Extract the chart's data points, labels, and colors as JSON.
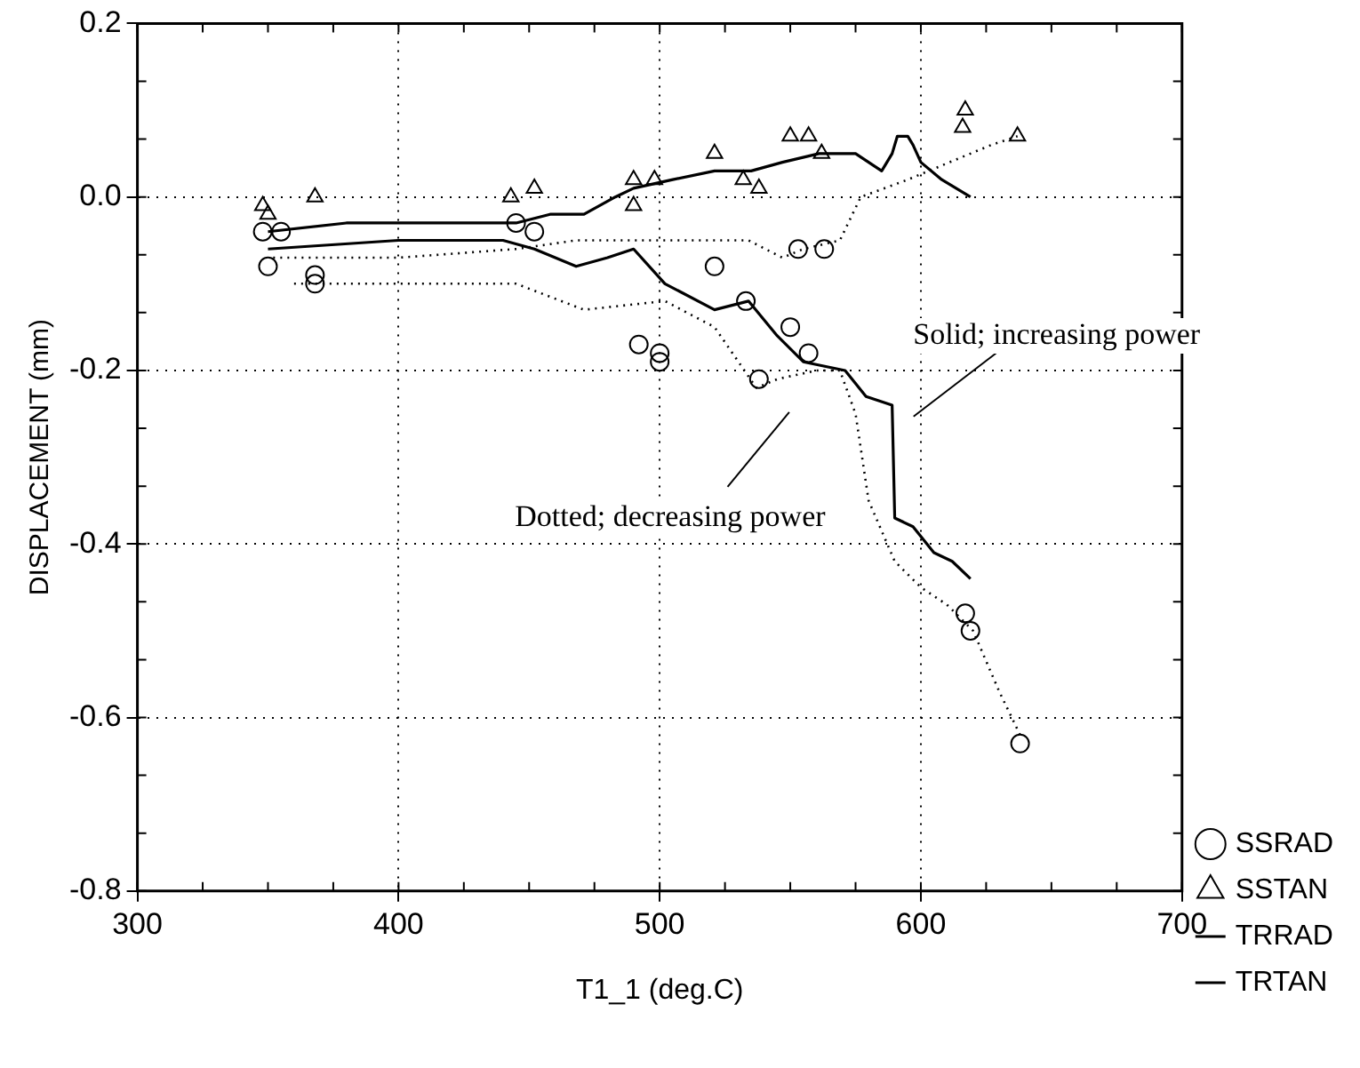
{
  "chart_data": {
    "type": "line",
    "xlabel": "T1_1 (deg.C)",
    "ylabel": "DISPLACEMENT (mm)",
    "xlim": [
      300,
      700
    ],
    "xticks": [
      300,
      400,
      500,
      600,
      700
    ],
    "ylim": [
      -0.8,
      0.2
    ],
    "yticks": [
      -0.8,
      -0.6,
      -0.4,
      -0.2,
      {
        "value": 0,
        "label": "0.0"
      },
      0.2
    ],
    "grid": true,
    "legend": "right",
    "annotations": [
      "Solid; increasing power",
      "Dotted; decreasing power"
    ],
    "series": [
      {
        "type": "scatter",
        "name": "SSRAD",
        "color": "#000000",
        "marker": "circle",
        "x": [
          350,
          348,
          355,
          368,
          368,
          445,
          452,
          521,
          553,
          563,
          492,
          500,
          500,
          533,
          550,
          557,
          538,
          617,
          619,
          638
        ],
        "values": [
          -0.08,
          -0.04,
          -0.04,
          -0.09,
          -0.1,
          -0.03,
          -0.04,
          -0.08,
          -0.06,
          -0.06,
          -0.17,
          -0.18,
          -0.19,
          -0.12,
          -0.15,
          -0.18,
          -0.21,
          -0.48,
          -0.5,
          -0.63
        ]
      },
      {
        "type": "scatter",
        "name": "SSTAN",
        "color": "#000000",
        "marker": "triangle",
        "x": [
          348,
          350,
          368,
          443,
          452,
          490,
          498,
          490,
          521,
          532,
          538,
          550,
          557,
          562,
          617,
          616,
          637
        ],
        "values": [
          -0.01,
          -0.02,
          0.0,
          0.0,
          0.01,
          0.02,
          0.02,
          -0.01,
          0.05,
          0.02,
          0.01,
          0.07,
          0.07,
          0.05,
          0.1,
          0.08,
          0.07
        ]
      },
      {
        "name": "TRRAD",
        "color": "#000000",
        "line_style": "solid",
        "x": [
          350,
          400,
          440,
          452,
          468,
          480,
          490,
          502,
          521,
          534,
          545,
          555,
          571,
          579,
          589,
          590,
          597,
          605,
          612,
          619
        ],
        "values": [
          -0.06,
          -0.05,
          -0.05,
          -0.06,
          -0.08,
          -0.07,
          -0.06,
          -0.1,
          -0.13,
          -0.12,
          -0.16,
          -0.19,
          -0.2,
          -0.23,
          -0.24,
          -0.37,
          -0.38,
          -0.41,
          -0.42,
          -0.44
        ]
      },
      {
        "name": "TRTAN",
        "color": "#000000",
        "line_style": "solid",
        "x": [
          350,
          380,
          430,
          445,
          458,
          471,
          483,
          490,
          505,
          521,
          535,
          547,
          561,
          575,
          585,
          589,
          591,
          595,
          597,
          600,
          608,
          619
        ],
        "values": [
          -0.04,
          -0.03,
          -0.03,
          -0.03,
          -0.02,
          -0.02,
          0.0,
          0.01,
          0.02,
          0.03,
          0.03,
          0.04,
          0.05,
          0.05,
          0.03,
          0.05,
          0.07,
          0.07,
          0.06,
          0.04,
          0.02,
          0.0
        ]
      },
      {
        "color": "#000000",
        "line_style": "dotted",
        "x": [
          360,
          400,
          445,
          471,
          502,
          521,
          537,
          545,
          560,
          569,
          575,
          580,
          590,
          600,
          610,
          620,
          630,
          638
        ],
        "values": [
          -0.1,
          -0.1,
          -0.1,
          -0.13,
          -0.12,
          -0.15,
          -0.22,
          -0.21,
          -0.2,
          -0.2,
          -0.25,
          -0.35,
          -0.42,
          -0.45,
          -0.47,
          -0.5,
          -0.57,
          -0.62
        ]
      },
      {
        "color": "#000000",
        "line_style": "dotted",
        "x": [
          352,
          400,
          445,
          468,
          494,
          520,
          534,
          547,
          555,
          569,
          577,
          595,
          611,
          627,
          637
        ],
        "values": [
          -0.07,
          -0.07,
          -0.06,
          -0.05,
          -0.05,
          -0.05,
          -0.05,
          -0.07,
          -0.06,
          -0.05,
          0.0,
          0.02,
          0.04,
          0.06,
          0.07
        ]
      }
    ]
  }
}
